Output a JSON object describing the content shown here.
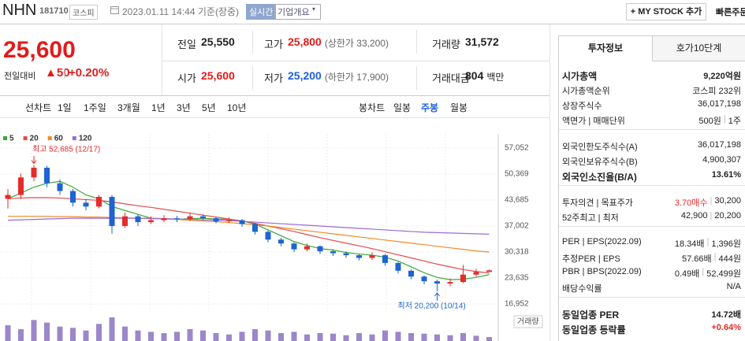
{
  "header": {
    "name": "NHN",
    "code": "181710",
    "market": "코스피",
    "datetime": "2023.01.11 14:44 기준(장중)",
    "realtime": "실시간",
    "overview": "기업개요",
    "mystock": "MY STOCK 추가",
    "quick_order": "빠른주문"
  },
  "price": {
    "current": "25,600",
    "change_label": "전일대비",
    "change": "▲50",
    "change_rate": "+0.20%"
  },
  "summary": [
    [
      {
        "label": "전일",
        "value": "25,550"
      },
      {
        "label": "고가",
        "value": "25,800",
        "note": "(상한가 33,200)"
      },
      {
        "label": "거래량",
        "value": "31,572"
      }
    ],
    [
      {
        "label": "시가",
        "value": "25,600"
      },
      {
        "label": "저가",
        "value": "25,200",
        "note": "(하한가 17,900)"
      },
      {
        "label": "거래대금",
        "value": "804",
        "note": "백만"
      }
    ]
  ],
  "chart_tabs": {
    "line_label": "선차트",
    "line_periods": [
      "1일",
      "1주일",
      "3개월",
      "1년",
      "3년",
      "5년",
      "10년"
    ],
    "candle_label": "봉차트",
    "candle_periods": [
      "일봉",
      "주봉",
      "월봉"
    ]
  },
  "chart_data": {
    "type": "candlestick",
    "open": [
      44000,
      45000,
      49500,
      52000,
      48000,
      46000,
      43000,
      42000,
      44500,
      37000,
      39500,
      38000,
      38500,
      39000,
      38800,
      39500,
      39000,
      38200,
      38500,
      37500,
      35500,
      33500,
      32500,
      31000,
      31800,
      30500,
      30000,
      29500,
      28800,
      29500,
      27500,
      25500,
      24000,
      22800,
      22200,
      22600,
      24500,
      25200
    ],
    "high": [
      46500,
      50500,
      52685,
      52500,
      49000,
      46500,
      44000,
      45000,
      45000,
      40500,
      40000,
      39500,
      39800,
      39600,
      40500,
      40000,
      39300,
      39200,
      38800,
      37700,
      35800,
      34000,
      32800,
      32500,
      32000,
      31000,
      30500,
      29800,
      30300,
      29800,
      27800,
      25800,
      24300,
      23200,
      23500,
      27000,
      26000,
      25800
    ],
    "low": [
      41500,
      44000,
      48500,
      47000,
      45000,
      42000,
      41000,
      41500,
      35000,
      36500,
      37000,
      37500,
      38000,
      38000,
      38300,
      38500,
      37700,
      37800,
      36800,
      34800,
      32800,
      31800,
      30300,
      30500,
      29800,
      29300,
      28800,
      28200,
      28300,
      26800,
      24800,
      23300,
      22000,
      20200,
      21500,
      22300,
      24000,
      25200
    ],
    "close": [
      45000,
      49500,
      52000,
      48000,
      46000,
      43000,
      42000,
      44500,
      37000,
      39500,
      38000,
      38500,
      39000,
      38800,
      39500,
      39000,
      38200,
      38500,
      37500,
      35500,
      33500,
      32500,
      31000,
      31800,
      30500,
      30000,
      29500,
      28800,
      29500,
      27500,
      25500,
      24000,
      22800,
      22200,
      22600,
      24500,
      25200,
      25600
    ],
    "up_color": "#e52b2b",
    "down_color": "#1e64d2",
    "series": [
      {
        "name": "5",
        "color": "#3aa83a",
        "values": [
          44000,
          45500,
          47000,
          48000,
          48500,
          47000,
          45000,
          44000,
          42000,
          41000,
          40000,
          39000,
          38800,
          38700,
          38900,
          39000,
          38800,
          38700,
          38300,
          37500,
          36000,
          34500,
          33000,
          32000,
          31200,
          30800,
          30200,
          29800,
          29500,
          29000,
          28000,
          26500,
          25000,
          23800,
          23200,
          23300,
          23800,
          24500
        ]
      },
      {
        "name": "20",
        "color": "#e24b4b",
        "values": [
          44000,
          44200,
          44300,
          44300,
          44200,
          44000,
          43800,
          43600,
          43200,
          42700,
          42200,
          41800,
          41300,
          40800,
          40300,
          39800,
          39300,
          38800,
          38300,
          37700,
          37000,
          36300,
          35600,
          34800,
          34000,
          33300,
          32600,
          31900,
          31200,
          30400,
          29600,
          28800,
          28000,
          27200,
          26500,
          25800,
          25300,
          24900
        ]
      },
      {
        "name": "60",
        "color": "#f08a24",
        "values": [
          39500,
          39500,
          39500,
          39500,
          39400,
          39400,
          39300,
          39300,
          39200,
          39100,
          39000,
          38900,
          38800,
          38700,
          38500,
          38300,
          38100,
          37900,
          37600,
          37300,
          37000,
          36600,
          36200,
          35800,
          35400,
          35000,
          34600,
          34200,
          33800,
          33400,
          33000,
          32600,
          32200,
          31800,
          31400,
          31000,
          30600,
          30300
        ]
      },
      {
        "name": "120",
        "color": "#9c6ad8",
        "values": [
          38500,
          38600,
          38700,
          38800,
          38900,
          39000,
          39000,
          39000,
          39000,
          39000,
          39000,
          39000,
          38900,
          38800,
          38700,
          38600,
          38500,
          38400,
          38200,
          38000,
          37800,
          37600,
          37400,
          37200,
          37000,
          36800,
          36600,
          36400,
          36200,
          36000,
          35800,
          35600,
          35400,
          35300,
          35200,
          35100,
          35000,
          34900
        ]
      }
    ],
    "volume": [
      600000,
      450000,
      800000,
      700000,
      550000,
      500000,
      400000,
      650000,
      900000,
      550000,
      400000,
      350000,
      300000,
      350000,
      450000,
      400000,
      300000,
      250000,
      350000,
      450000,
      400000,
      300000,
      350000,
      250000,
      300000,
      280000,
      220000,
      300000,
      250000,
      400000,
      350000,
      300000,
      280000,
      250000,
      220000,
      300000,
      200000,
      150000
    ],
    "volume_color": "#9b87c9",
    "volume_label": "거래량",
    "ylim": [
      16952,
      57052
    ],
    "yticks": [
      {
        "value": 16952,
        "label": "16,952"
      },
      {
        "value": 23635,
        "label": "23,635"
      },
      {
        "value": 30318,
        "label": "30,318"
      },
      {
        "value": 37002,
        "label": "37,002"
      },
      {
        "value": 43685,
        "label": "43,685"
      },
      {
        "value": 50369,
        "label": "50,369"
      },
      {
        "value": 57052,
        "label": "57,052"
      }
    ],
    "grid": true,
    "annotations": [
      {
        "text": "최고 52,685 (12/17)",
        "color": "#e52b2b"
      },
      {
        "text": "최저 20,200 (10/14)",
        "color": "#1e64d2"
      }
    ]
  },
  "invest_info": {
    "tabs": [
      "투자정보",
      "호가10단계"
    ],
    "groups": [
      [
        {
          "label": "시가총액",
          "values": [
            "9,220억원"
          ],
          "emphasis": true
        },
        {
          "label": "시가총액순위",
          "values": [
            "코스피 232위"
          ]
        },
        {
          "label": "상장주식수",
          "values": [
            "36,017,198"
          ]
        },
        {
          "label": "액면가 | 매매단위",
          "values": [
            "500원",
            "|",
            "1주"
          ]
        }
      ],
      [
        {
          "label": "외국인한도주식수(A)",
          "values": [
            "36,017,198"
          ]
        },
        {
          "label": "외국인보유주식수(B)",
          "values": [
            "4,900,307"
          ]
        },
        {
          "label": "외국인소진율(B/A)",
          "values": [
            "13.61%"
          ],
          "emphasis": true
        }
      ],
      [
        {
          "label": "투자의견 | 목표주가",
          "values": [
            "3.70매수",
            "|",
            "30,200"
          ],
          "value_color": "#e52b2b"
        },
        {
          "label": "52주최고 | 최저",
          "values": [
            "42,900",
            "|",
            "20,200"
          ]
        }
      ],
      [
        {
          "label": "PER | EPS(2022.09)",
          "values": [
            "18.34배",
            "|",
            "1,396원"
          ]
        },
        {
          "label": "추정PER | EPS",
          "values": [
            "57.66배",
            "|",
            "444원"
          ]
        },
        {
          "label": "PBR | BPS(2022.09)",
          "values": [
            "0.49배",
            "|",
            "52,499원"
          ]
        },
        {
          "label": "배당수익률",
          "values": [
            "N/A"
          ]
        }
      ],
      [
        {
          "label": "동일업종 PER",
          "values": [
            "14.72배"
          ],
          "emphasis": true
        },
        {
          "label": "동일업종 등락률",
          "values": [
            "+0.64%"
          ],
          "emphasis": true,
          "value_color": "#e52b2b"
        }
      ]
    ]
  }
}
